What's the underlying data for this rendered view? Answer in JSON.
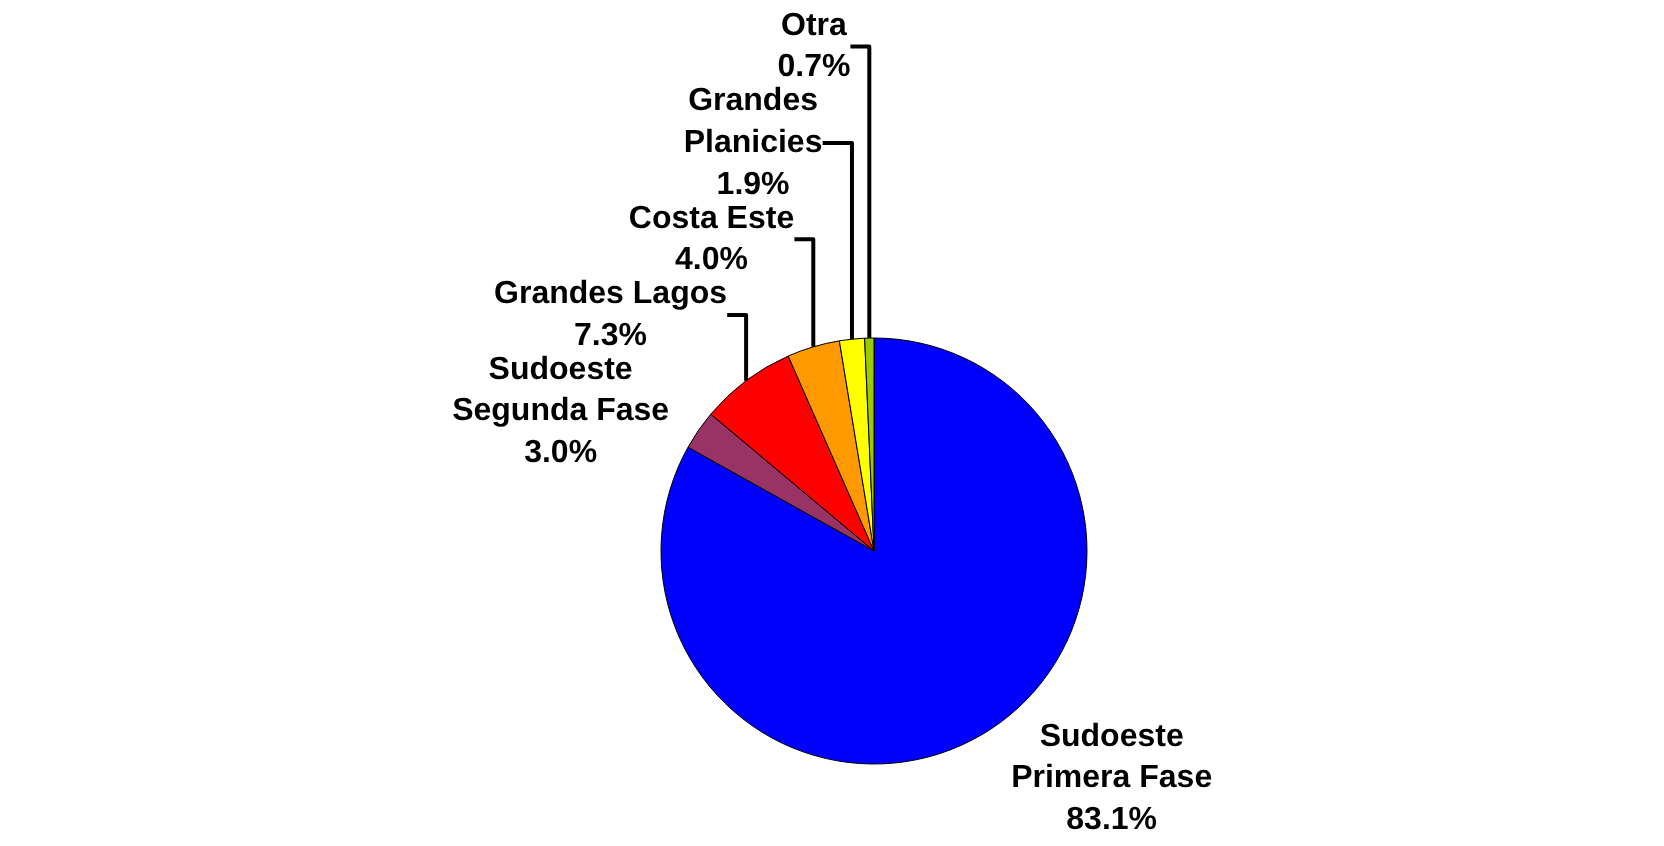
{
  "chart_data": {
    "type": "pie",
    "categories": [
      "Sudoeste Primera Fase",
      "Sudoeste Segunda Fase",
      "Grandes Lagos",
      "Costa Este",
      "Grandes Planicies",
      "Otra"
    ],
    "values": [
      83.1,
      3.0,
      7.3,
      4.0,
      1.9,
      0.7
    ],
    "value_labels": [
      "83.1%",
      "3.0%",
      "7.3%",
      "4.0%",
      "1.9%",
      "0.7%"
    ],
    "colors": [
      "#0000ff",
      "#993366",
      "#ff0000",
      "#ff9900",
      "#ffff00",
      "#99cc00"
    ],
    "legend": false
  }
}
